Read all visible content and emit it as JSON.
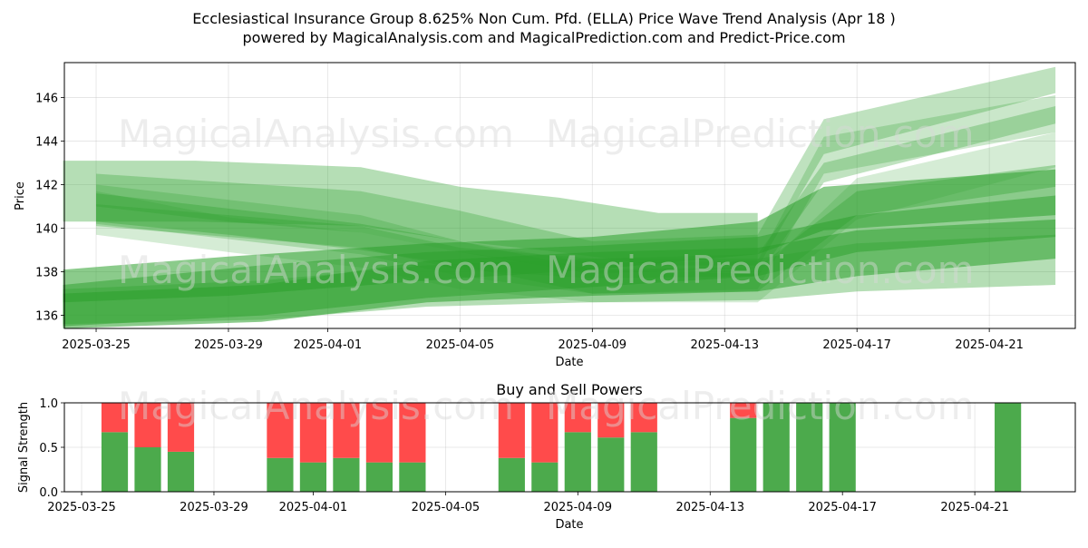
{
  "title_line1": "Ecclesiastical Insurance Group 8.625% Non Cum. Pfd. (ELLA) Price Wave Trend Analysis (Apr 18 )",
  "title_line2": "powered by MagicalAnalysis.com and MagicalPrediction.com and Predict-Price.com",
  "watermarks": [
    "MagicalAnalysis.com",
    "MagicalPrediction.com"
  ],
  "colors": {
    "band": "#2ca02c",
    "buy": "#4caa4c",
    "sell": "#ff4b4b"
  },
  "chart_data": [
    {
      "type": "area",
      "title": "",
      "xlabel": "Date",
      "ylabel": "Price",
      "xlim": [
        "2025-03-24",
        "2025-04-24"
      ],
      "ylim": [
        135.4,
        147.6
      ],
      "x_ticks": [
        "2025-03-25",
        "2025-03-29",
        "2025-04-01",
        "2025-04-05",
        "2025-04-09",
        "2025-04-13",
        "2025-04-17",
        "2025-04-21"
      ],
      "y_ticks": [
        136,
        138,
        140,
        142,
        144,
        146
      ],
      "grid": true,
      "series": [
        {
          "x": [
            "2025-03-24",
            "2025-03-29",
            "2025-04-04",
            "2025-04-09",
            "2025-04-14",
            "2025-04-16",
            "2025-04-23"
          ],
          "upper": [
            138.1,
            138.7,
            139.3,
            139.6,
            140.3,
            141.9,
            142.7
          ],
          "lower": [
            136.6,
            136.9,
            137.6,
            138.1,
            138.8,
            139.9,
            140.6
          ],
          "opacity": 0.55
        },
        {
          "x": [
            "2025-03-24",
            "2025-03-30",
            "2025-04-04",
            "2025-04-09",
            "2025-04-14",
            "2025-04-17",
            "2025-04-23"
          ],
          "upper": [
            137.4,
            138.3,
            138.9,
            139.2,
            139.6,
            140.6,
            141.5
          ],
          "lower": [
            135.5,
            136.0,
            136.8,
            137.3,
            137.8,
            138.9,
            139.6
          ],
          "opacity": 0.5
        },
        {
          "x": [
            "2025-03-24",
            "2025-03-30",
            "2025-04-04",
            "2025-04-09",
            "2025-04-14",
            "2025-04-17",
            "2025-04-23"
          ],
          "upper": [
            137.0,
            137.4,
            138.5,
            138.9,
            139.1,
            139.9,
            140.4
          ],
          "lower": [
            135.4,
            135.7,
            136.6,
            136.9,
            137.1,
            137.8,
            138.6
          ],
          "opacity": 0.55
        },
        {
          "x": [
            "2025-03-24",
            "2025-03-30",
            "2025-04-04",
            "2025-04-09",
            "2025-04-14",
            "2025-04-17",
            "2025-04-23"
          ],
          "upper": [
            137.2,
            137.6,
            138.3,
            138.6,
            138.6,
            139.3,
            139.7
          ],
          "lower": [
            135.6,
            135.8,
            136.4,
            136.6,
            136.7,
            137.1,
            137.4
          ],
          "opacity": 0.35
        },
        {
          "x": [
            "2025-03-24",
            "2025-03-28",
            "2025-04-02",
            "2025-04-05",
            "2025-04-08",
            "2025-04-11",
            "2025-04-14"
          ],
          "upper": [
            143.1,
            143.1,
            142.8,
            141.9,
            141.4,
            140.7,
            140.7
          ],
          "lower": [
            140.3,
            140.3,
            140.1,
            139.4,
            138.9,
            138.3,
            138.3
          ],
          "opacity": 0.35
        },
        {
          "x": [
            "2025-03-25",
            "2025-03-29",
            "2025-04-02",
            "2025-04-05",
            "2025-04-09",
            "2025-04-14",
            "2025-04-16",
            "2025-04-23"
          ],
          "upper": [
            142.5,
            142.1,
            141.7,
            140.8,
            139.4,
            139.7,
            145.0,
            147.4
          ],
          "lower": [
            141.0,
            140.3,
            139.8,
            138.9,
            137.9,
            138.2,
            143.4,
            146.2
          ],
          "opacity": 0.3
        },
        {
          "x": [
            "2025-03-25",
            "2025-03-29",
            "2025-04-02",
            "2025-04-05",
            "2025-04-09",
            "2025-04-14",
            "2025-04-16",
            "2025-04-23"
          ],
          "upper": [
            142.0,
            141.3,
            140.6,
            139.4,
            138.4,
            138.5,
            144.2,
            146.1
          ],
          "lower": [
            140.2,
            139.5,
            138.8,
            137.8,
            137.0,
            137.2,
            142.5,
            144.4
          ],
          "opacity": 0.25
        },
        {
          "x": [
            "2025-03-25",
            "2025-03-29",
            "2025-04-02",
            "2025-04-05",
            "2025-04-09",
            "2025-04-14",
            "2025-04-17",
            "2025-04-23"
          ],
          "upper": [
            141.7,
            140.5,
            139.8,
            138.9,
            138.1,
            137.9,
            142.3,
            144.4
          ],
          "lower": [
            139.7,
            138.9,
            138.2,
            137.2,
            136.6,
            136.6,
            140.4,
            142.8
          ],
          "opacity": 0.2
        },
        {
          "x": [
            "2025-03-25",
            "2025-03-29",
            "2025-04-02",
            "2025-04-05",
            "2025-04-09",
            "2025-04-14",
            "2025-04-16",
            "2025-04-23"
          ],
          "upper": [
            141.1,
            140.6,
            140.1,
            139.1,
            138.6,
            138.8,
            143.0,
            145.6
          ],
          "lower": [
            140.1,
            139.6,
            139.1,
            138.1,
            137.7,
            137.8,
            142.1,
            144.8
          ],
          "opacity": 0.3
        },
        {
          "x": [
            "2025-03-25",
            "2025-03-29",
            "2025-04-02",
            "2025-04-05",
            "2025-04-09",
            "2025-04-14",
            "2025-04-17",
            "2025-04-23"
          ],
          "upper": [
            141.6,
            140.9,
            140.2,
            139.4,
            138.1,
            138.2,
            141.7,
            142.9
          ],
          "lower": [
            140.3,
            139.7,
            139.0,
            138.3,
            137.0,
            137.1,
            140.6,
            141.9
          ],
          "opacity": 0.35
        }
      ]
    },
    {
      "type": "bar",
      "title": "Buy and Sell Powers",
      "xlabel": "Date",
      "ylabel": "Signal Strength",
      "xlim": [
        "2025-03-24",
        "2025-04-24"
      ],
      "ylim": [
        0,
        1
      ],
      "x_ticks": [
        "2025-03-25",
        "2025-03-29",
        "2025-04-01",
        "2025-04-05",
        "2025-04-09",
        "2025-04-13",
        "2025-04-17",
        "2025-04-21"
      ],
      "y_ticks": [
        "0.0",
        "0.5",
        "1.0"
      ],
      "grid": true,
      "x": [
        "2025-03-26",
        "2025-03-27",
        "2025-03-28",
        "2025-03-31",
        "2025-04-01",
        "2025-04-02",
        "2025-04-03",
        "2025-04-04",
        "2025-04-07",
        "2025-04-08",
        "2025-04-09",
        "2025-04-10",
        "2025-04-11",
        "2025-04-14",
        "2025-04-15",
        "2025-04-16",
        "2025-04-17",
        "2025-04-22"
      ],
      "series": [
        {
          "name": "Buy",
          "values": [
            0.67,
            0.5,
            0.45,
            0.38,
            0.33,
            0.38,
            0.33,
            0.33,
            0.38,
            0.33,
            0.67,
            0.61,
            0.67,
            0.83,
            1.0,
            1.0,
            1.0,
            1.0
          ]
        },
        {
          "name": "Sell",
          "values": [
            0.33,
            0.5,
            0.55,
            0.62,
            0.67,
            0.62,
            0.67,
            0.67,
            0.62,
            0.67,
            0.33,
            0.39,
            0.33,
            0.17,
            0.0,
            0.0,
            0.0,
            0.0
          ]
        }
      ]
    }
  ]
}
